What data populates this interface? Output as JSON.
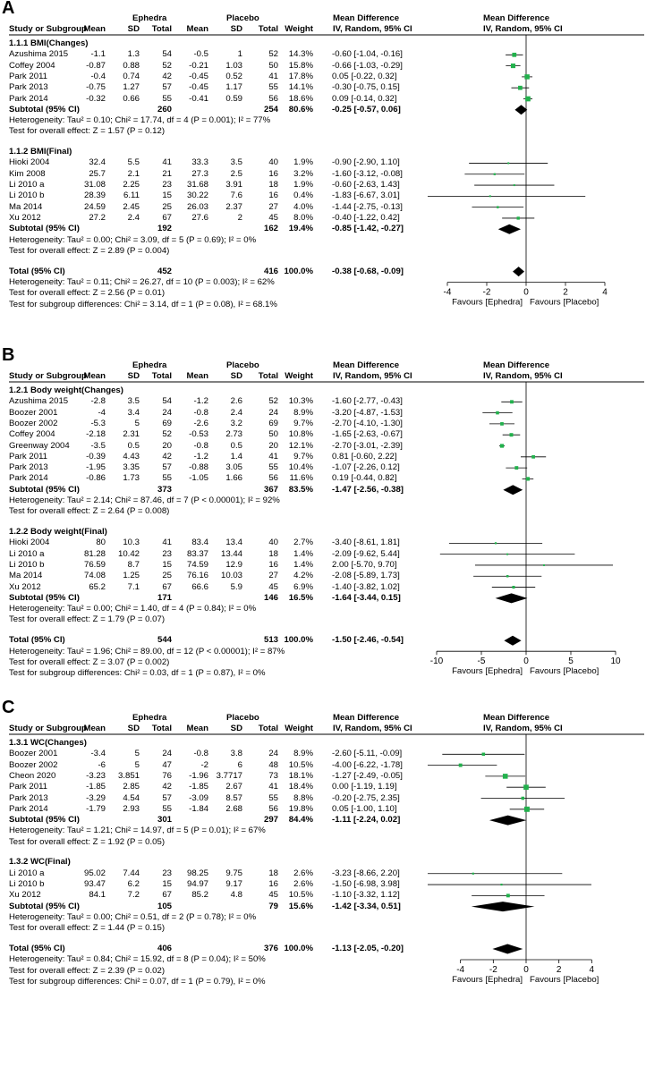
{
  "chart_data": [
    {
      "type": "forest",
      "panel_label": "A",
      "header": {
        "group1": "Ephedra",
        "group2": "Placebo",
        "study_col": "Study or Subgroup",
        "mean": "Mean",
        "sd": "SD",
        "total": "Total",
        "weight": "Weight",
        "md_col": "Mean Difference",
        "md_sub": "IV, Random, 95% CI"
      },
      "subgroups": [
        {
          "title": "1.1.1 BMI(Changes)",
          "studies": [
            {
              "name": "Azushima 2015",
              "m1": "-1.1",
              "sd1": "1.3",
              "n1": "54",
              "m2": "-0.5",
              "sd2": "1",
              "n2": "52",
              "weight": "14.3%",
              "ci": "-0.60 [-1.04, -0.16]",
              "md": -0.6,
              "lo": -1.04,
              "hi": -0.16
            },
            {
              "name": "Coffey 2004",
              "m1": "-0.87",
              "sd1": "0.88",
              "n1": "52",
              "m2": "-0.21",
              "sd2": "1.03",
              "n2": "50",
              "weight": "15.8%",
              "ci": "-0.66 [-1.03, -0.29]",
              "md": -0.66,
              "lo": -1.03,
              "hi": -0.29
            },
            {
              "name": "Park 2011",
              "m1": "-0.4",
              "sd1": "0.74",
              "n1": "42",
              "m2": "-0.45",
              "sd2": "0.52",
              "n2": "41",
              "weight": "17.8%",
              "ci": "0.05 [-0.22, 0.32]",
              "md": 0.05,
              "lo": -0.22,
              "hi": 0.32
            },
            {
              "name": "Park 2013",
              "m1": "-0.75",
              "sd1": "1.27",
              "n1": "57",
              "m2": "-0.45",
              "sd2": "1.17",
              "n2": "55",
              "weight": "14.1%",
              "ci": "-0.30 [-0.75, 0.15]",
              "md": -0.3,
              "lo": -0.75,
              "hi": 0.15
            },
            {
              "name": "Park 2014",
              "m1": "-0.32",
              "sd1": "0.66",
              "n1": "55",
              "m2": "-0.41",
              "sd2": "0.59",
              "n2": "56",
              "weight": "18.6%",
              "ci": "0.09 [-0.14, 0.32]",
              "md": 0.09,
              "lo": -0.14,
              "hi": 0.32
            }
          ],
          "subtotal": {
            "label": "Subtotal (95% CI)",
            "n1": "260",
            "n2": "254",
            "weight": "80.6%",
            "ci": "-0.25 [-0.57, 0.06]",
            "md": -0.25,
            "lo": -0.57,
            "hi": 0.06
          },
          "heterogeneity": "Heterogeneity: Tau² = 0.10; Chi² = 17.74, df = 4 (P = 0.001); I² = 77%",
          "overall": "Test for overall effect: Z = 1.57 (P = 0.12)"
        },
        {
          "title": "1.1.2 BMI(Final)",
          "studies": [
            {
              "name": "Hioki 2004",
              "m1": "32.4",
              "sd1": "5.5",
              "n1": "41",
              "m2": "33.3",
              "sd2": "3.5",
              "n2": "40",
              "weight": "1.9%",
              "ci": "-0.90 [-2.90, 1.10]",
              "md": -0.9,
              "lo": -2.9,
              "hi": 1.1
            },
            {
              "name": "Kim 2008",
              "m1": "25.7",
              "sd1": "2.1",
              "n1": "21",
              "m2": "27.3",
              "sd2": "2.5",
              "n2": "16",
              "weight": "3.2%",
              "ci": "-1.60 [-3.12, -0.08]",
              "md": -1.6,
              "lo": -3.12,
              "hi": -0.08
            },
            {
              "name": "Li 2010 a",
              "m1": "31.08",
              "sd1": "2.25",
              "n1": "23",
              "m2": "31.68",
              "sd2": "3.91",
              "n2": "18",
              "weight": "1.9%",
              "ci": "-0.60 [-2.63, 1.43]",
              "md": -0.6,
              "lo": -2.63,
              "hi": 1.43
            },
            {
              "name": "Li 2010 b",
              "m1": "28.39",
              "sd1": "6.11",
              "n1": "15",
              "m2": "30.22",
              "sd2": "7.6",
              "n2": "16",
              "weight": "0.4%",
              "ci": "-1.83 [-6.67, 3.01]",
              "md": -1.83,
              "lo": -6.67,
              "hi": 3.01
            },
            {
              "name": "Ma 2014",
              "m1": "24.59",
              "sd1": "2.45",
              "n1": "25",
              "m2": "26.03",
              "sd2": "2.37",
              "n2": "27",
              "weight": "4.0%",
              "ci": "-1.44 [-2.75, -0.13]",
              "md": -1.44,
              "lo": -2.75,
              "hi": -0.13
            },
            {
              "name": "Xu 2012",
              "m1": "27.2",
              "sd1": "2.4",
              "n1": "67",
              "m2": "27.6",
              "sd2": "2",
              "n2": "45",
              "weight": "8.0%",
              "ci": "-0.40 [-1.22, 0.42]",
              "md": -0.4,
              "lo": -1.22,
              "hi": 0.42
            }
          ],
          "subtotal": {
            "label": "Subtotal (95% CI)",
            "n1": "192",
            "n2": "162",
            "weight": "19.4%",
            "ci": "-0.85 [-1.42, -0.27]",
            "md": -0.85,
            "lo": -1.42,
            "hi": -0.27
          },
          "heterogeneity": "Heterogeneity: Tau² = 0.00; Chi² = 3.09, df = 5 (P = 0.69); I² = 0%",
          "overall": "Test for overall effect: Z = 2.89 (P = 0.004)"
        }
      ],
      "total": {
        "label": "Total (95% CI)",
        "n1": "452",
        "n2": "416",
        "weight": "100.0%",
        "ci": "-0.38 [-0.68, -0.09]",
        "md": -0.38,
        "lo": -0.68,
        "hi": -0.09
      },
      "total_heterogeneity": "Heterogeneity: Tau² = 0.11; Chi² = 26.27, df = 10 (P = 0.003); I² = 62%",
      "total_overall": "Test for overall effect: Z = 2.56 (P = 0.01)",
      "subgroup_diff": "Test for subgroup differences: Chi² = 3.14, df = 1 (P = 0.08), I² = 68.1%",
      "axis": {
        "xlim": [
          -5,
          5
        ],
        "ticks": [
          -4,
          -2,
          0,
          2,
          4
        ],
        "tick_labels": [
          "-4",
          "-2",
          "0",
          "2",
          "4"
        ],
        "left_label": "Favours [Ephedra]",
        "right_label": "Favours [Placebo]"
      }
    },
    {
      "type": "forest",
      "panel_label": "B",
      "header": {
        "group1": "Ephedra",
        "group2": "Placebo",
        "study_col": "Study or Subgroup",
        "mean": "Mean",
        "sd": "SD",
        "total": "Total",
        "weight": "Weight",
        "md_col": "Mean Difference",
        "md_sub": "IV, Random, 95% CI"
      },
      "subgroups": [
        {
          "title": "1.2.1 Body weight(Changes)",
          "studies": [
            {
              "name": "Azushima 2015",
              "m1": "-2.8",
              "sd1": "3.5",
              "n1": "54",
              "m2": "-1.2",
              "sd2": "2.6",
              "n2": "52",
              "weight": "10.3%",
              "ci": "-1.60 [-2.77, -0.43]",
              "md": -1.6,
              "lo": -2.77,
              "hi": -0.43
            },
            {
              "name": "Boozer 2001",
              "m1": "-4",
              "sd1": "3.4",
              "n1": "24",
              "m2": "-0.8",
              "sd2": "2.4",
              "n2": "24",
              "weight": "8.9%",
              "ci": "-3.20 [-4.87, -1.53]",
              "md": -3.2,
              "lo": -4.87,
              "hi": -1.53
            },
            {
              "name": "Boozer 2002",
              "m1": "-5.3",
              "sd1": "5",
              "n1": "69",
              "m2": "-2.6",
              "sd2": "3.2",
              "n2": "69",
              "weight": "9.7%",
              "ci": "-2.70 [-4.10, -1.30]",
              "md": -2.7,
              "lo": -4.1,
              "hi": -1.3
            },
            {
              "name": "Coffey 2004",
              "m1": "-2.18",
              "sd1": "2.31",
              "n1": "52",
              "m2": "-0.53",
              "sd2": "2.73",
              "n2": "50",
              "weight": "10.8%",
              "ci": "-1.65 [-2.63, -0.67]",
              "md": -1.65,
              "lo": -2.63,
              "hi": -0.67
            },
            {
              "name": "Greenway 2004",
              "m1": "-3.5",
              "sd1": "0.5",
              "n1": "20",
              "m2": "-0.8",
              "sd2": "0.5",
              "n2": "20",
              "weight": "12.1%",
              "ci": "-2.70 [-3.01, -2.39]",
              "md": -2.7,
              "lo": -3.01,
              "hi": -2.39
            },
            {
              "name": "Park 2011",
              "m1": "-0.39",
              "sd1": "4.43",
              "n1": "42",
              "m2": "-1.2",
              "sd2": "1.4",
              "n2": "41",
              "weight": "9.7%",
              "ci": "0.81 [-0.60, 2.22]",
              "md": 0.81,
              "lo": -0.6,
              "hi": 2.22
            },
            {
              "name": "Park 2013",
              "m1": "-1.95",
              "sd1": "3.35",
              "n1": "57",
              "m2": "-0.88",
              "sd2": "3.05",
              "n2": "55",
              "weight": "10.4%",
              "ci": "-1.07 [-2.26, 0.12]",
              "md": -1.07,
              "lo": -2.26,
              "hi": 0.12
            },
            {
              "name": "Park 2014",
              "m1": "-0.86",
              "sd1": "1.73",
              "n1": "55",
              "m2": "-1.05",
              "sd2": "1.66",
              "n2": "56",
              "weight": "11.6%",
              "ci": "0.19 [-0.44, 0.82]",
              "md": 0.19,
              "lo": -0.44,
              "hi": 0.82
            }
          ],
          "subtotal": {
            "label": "Subtotal (95% CI)",
            "n1": "373",
            "n2": "367",
            "weight": "83.5%",
            "ci": "-1.47 [-2.56, -0.38]",
            "md": -1.47,
            "lo": -2.56,
            "hi": -0.38
          },
          "heterogeneity": "Heterogeneity: Tau² = 2.14; Chi² = 87.46, df = 7 (P < 0.00001); I² = 92%",
          "overall": "Test for overall effect: Z = 2.64 (P = 0.008)"
        },
        {
          "title": "1.2.2 Body weight(Final)",
          "studies": [
            {
              "name": "Hioki 2004",
              "m1": "80",
              "sd1": "10.3",
              "n1": "41",
              "m2": "83.4",
              "sd2": "13.4",
              "n2": "40",
              "weight": "2.7%",
              "ci": "-3.40 [-8.61, 1.81]",
              "md": -3.4,
              "lo": -8.61,
              "hi": 1.81
            },
            {
              "name": "Li 2010 a",
              "m1": "81.28",
              "sd1": "10.42",
              "n1": "23",
              "m2": "83.37",
              "sd2": "13.44",
              "n2": "18",
              "weight": "1.4%",
              "ci": "-2.09 [-9.62, 5.44]",
              "md": -2.09,
              "lo": -9.62,
              "hi": 5.44
            },
            {
              "name": "Li 2010 b",
              "m1": "76.59",
              "sd1": "8.7",
              "n1": "15",
              "m2": "74.59",
              "sd2": "12.9",
              "n2": "16",
              "weight": "1.4%",
              "ci": "2.00 [-5.70, 9.70]",
              "md": 2.0,
              "lo": -5.7,
              "hi": 9.7
            },
            {
              "name": "Ma 2014",
              "m1": "74.08",
              "sd1": "1.25",
              "n1": "25",
              "m2": "76.16",
              "sd2": "10.03",
              "n2": "27",
              "weight": "4.2%",
              "ci": "-2.08 [-5.89, 1.73]",
              "md": -2.08,
              "lo": -5.89,
              "hi": 1.73
            },
            {
              "name": "Xu 2012",
              "m1": "65.2",
              "sd1": "7.1",
              "n1": "67",
              "m2": "66.6",
              "sd2": "5.9",
              "n2": "45",
              "weight": "6.9%",
              "ci": "-1.40 [-3.82, 1.02]",
              "md": -1.4,
              "lo": -3.82,
              "hi": 1.02
            }
          ],
          "subtotal": {
            "label": "Subtotal (95% CI)",
            "n1": "171",
            "n2": "146",
            "weight": "16.5%",
            "ci": "-1.64 [-3.44, 0.15]",
            "md": -1.64,
            "lo": -3.44,
            "hi": 0.15
          },
          "heterogeneity": "Heterogeneity: Tau² = 0.00; Chi² = 1.40, df = 4 (P = 0.84); I² = 0%",
          "overall": "Test for overall effect: Z = 1.79 (P = 0.07)"
        }
      ],
      "total": {
        "label": "Total (95% CI)",
        "n1": "544",
        "n2": "513",
        "weight": "100.0%",
        "ci": "-1.50 [-2.46, -0.54]",
        "md": -1.5,
        "lo": -2.46,
        "hi": -0.54
      },
      "total_heterogeneity": "Heterogeneity: Tau² = 1.96; Chi² = 89.00, df = 12 (P < 0.00001); I² = 87%",
      "total_overall": "Test for overall effect: Z = 3.07 (P = 0.002)",
      "subgroup_diff": "Test for subgroup differences: Chi² = 0.03, df = 1 (P = 0.87), I² = 0%",
      "axis": {
        "xlim": [
          -11,
          11
        ],
        "ticks": [
          -10,
          -5,
          0,
          5,
          10
        ],
        "tick_labels": [
          "-10",
          "-5",
          "0",
          "5",
          "10"
        ],
        "left_label": "Favours [Ephedra]",
        "right_label": "Favours [Placebo]"
      }
    },
    {
      "type": "forest",
      "panel_label": "C",
      "header": {
        "group1": "Ephedra",
        "group2": "Placebo",
        "study_col": "Study or Subgroup",
        "mean": "Mean",
        "sd": "SD",
        "total": "Total",
        "weight": "Weight",
        "md_col": "Mean Difference",
        "md_sub": "IV, Random, 95% CI"
      },
      "subgroups": [
        {
          "title": "1.3.1 WC(Changes)",
          "studies": [
            {
              "name": "Boozer 2001",
              "m1": "-3.4",
              "sd1": "5",
              "n1": "24",
              "m2": "-0.8",
              "sd2": "3.8",
              "n2": "24",
              "weight": "8.9%",
              "ci": "-2.60 [-5.11, -0.09]",
              "md": -2.6,
              "lo": -5.11,
              "hi": -0.09
            },
            {
              "name": "Boozer 2002",
              "m1": "-6",
              "sd1": "5",
              "n1": "47",
              "m2": "-2",
              "sd2": "6",
              "n2": "48",
              "weight": "10.5%",
              "ci": "-4.00 [-6.22, -1.78]",
              "md": -4.0,
              "lo": -6.22,
              "hi": -1.78
            },
            {
              "name": "Cheon 2020",
              "m1": "-3.23",
              "sd1": "3.851",
              "n1": "76",
              "m2": "-1.96",
              "sd2": "3.7717",
              "n2": "73",
              "weight": "18.1%",
              "ci": "-1.27 [-2.49, -0.05]",
              "md": -1.27,
              "lo": -2.49,
              "hi": -0.05
            },
            {
              "name": "Park 2011",
              "m1": "-1.85",
              "sd1": "2.85",
              "n1": "42",
              "m2": "-1.85",
              "sd2": "2.67",
              "n2": "41",
              "weight": "18.4%",
              "ci": "0.00 [-1.19, 1.19]",
              "md": 0.0,
              "lo": -1.19,
              "hi": 1.19
            },
            {
              "name": "Park 2013",
              "m1": "-3.29",
              "sd1": "4.54",
              "n1": "57",
              "m2": "-3.09",
              "sd2": "8.57",
              "n2": "55",
              "weight": "8.8%",
              "ci": "-0.20 [-2.75, 2.35]",
              "md": -0.2,
              "lo": -2.75,
              "hi": 2.35
            },
            {
              "name": "Park 2014",
              "m1": "-1.79",
              "sd1": "2.93",
              "n1": "55",
              "m2": "-1.84",
              "sd2": "2.68",
              "n2": "56",
              "weight": "19.8%",
              "ci": "0.05 [-1.00, 1.10]",
              "md": 0.05,
              "lo": -1.0,
              "hi": 1.1
            }
          ],
          "subtotal": {
            "label": "Subtotal (95% CI)",
            "n1": "301",
            "n2": "297",
            "weight": "84.4%",
            "ci": "-1.11 [-2.24, 0.02]",
            "md": -1.11,
            "lo": -2.24,
            "hi": 0.02
          },
          "heterogeneity": "Heterogeneity: Tau² = 1.21; Chi² = 14.97, df = 5 (P = 0.01); I² = 67%",
          "overall": "Test for overall effect: Z = 1.92 (P = 0.05)"
        },
        {
          "title": "1.3.2 WC(Final)",
          "studies": [
            {
              "name": "Li 2010 a",
              "m1": "95.02",
              "sd1": "7.44",
              "n1": "23",
              "m2": "98.25",
              "sd2": "9.75",
              "n2": "18",
              "weight": "2.6%",
              "ci": "-3.23 [-8.66, 2.20]",
              "md": -3.23,
              "lo": -8.66,
              "hi": 2.2
            },
            {
              "name": "Li 2010 b",
              "m1": "93.47",
              "sd1": "6.2",
              "n1": "15",
              "m2": "94.97",
              "sd2": "9.17",
              "n2": "16",
              "weight": "2.6%",
              "ci": "-1.50 [-6.98, 3.98]",
              "md": -1.5,
              "lo": -6.98,
              "hi": 3.98
            },
            {
              "name": "Xu 2012",
              "m1": "84.1",
              "sd1": "7.2",
              "n1": "67",
              "m2": "85.2",
              "sd2": "4.8",
              "n2": "45",
              "weight": "10.5%",
              "ci": "-1.10 [-3.32, 1.12]",
              "md": -1.1,
              "lo": -3.32,
              "hi": 1.12
            }
          ],
          "subtotal": {
            "label": "Subtotal (95% CI)",
            "n1": "105",
            "n2": "79",
            "weight": "15.6%",
            "ci": "-1.42 [-3.34, 0.51]",
            "md": -1.42,
            "lo": -3.34,
            "hi": 0.51
          },
          "heterogeneity": "Heterogeneity: Tau² = 0.00; Chi² = 0.51, df = 2 (P = 0.78); I² = 0%",
          "overall": "Test for overall effect: Z = 1.44 (P = 0.15)"
        }
      ],
      "total": {
        "label": "Total (95% CI)",
        "n1": "406",
        "n2": "376",
        "weight": "100.0%",
        "ci": "-1.13 [-2.05, -0.20]",
        "md": -1.13,
        "lo": -2.05,
        "hi": -0.2
      },
      "total_heterogeneity": "Heterogeneity: Tau² = 0.84; Chi² = 15.92, df = 8 (P = 0.04); I² = 50%",
      "total_overall": "Test for overall effect: Z = 2.39 (P = 0.02)",
      "subgroup_diff": "Test for subgroup differences: Chi² = 0.07, df = 1 (P = 0.79), I² = 0%",
      "axis": {
        "xlim": [
          -6,
          6
        ],
        "ticks": [
          -4,
          -2,
          0,
          2,
          4
        ],
        "tick_labels": [
          "-4",
          "-2",
          "0",
          "2",
          "4"
        ],
        "left_label": "Favours [Ephedra]",
        "right_label": "Favours [Placebo]"
      }
    }
  ],
  "colors": {
    "marker": "#22b14c",
    "diamond": "#000000",
    "line": "#000000",
    "text": "#000000"
  }
}
